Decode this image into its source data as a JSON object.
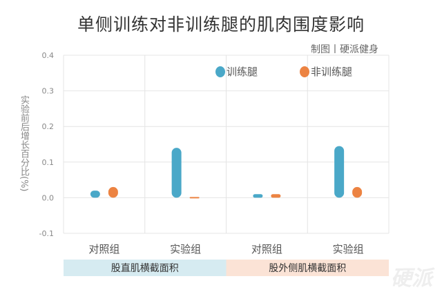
{
  "title": "单侧训练对非训练腿的肌肉围度影响",
  "credit": "制图丨硬派健身",
  "watermark": "硬派",
  "colors": {
    "trained": "#4aa8c8",
    "untrained": "#ec8342",
    "group1_band": "#d6ebf1",
    "group2_band": "#fbe3d6",
    "grid": "#e4e4e4"
  },
  "chart_data": {
    "type": "bar",
    "title": "单侧训练对非训练腿的肌肉围度影响",
    "ylabel": "实验前后增长百分比(%)",
    "ylim": [
      -0.1,
      0.4
    ],
    "yticks": [
      "0.4",
      "0.3",
      "0.2",
      "0.1",
      "0.0",
      "-0.1"
    ],
    "categories": [
      "对照组",
      "实验组",
      "对照组",
      "实验组"
    ],
    "groups": [
      {
        "label": "股直肌横截面积",
        "categories": [
          "对照组",
          "实验组"
        ]
      },
      {
        "label": "股外侧肌横截面积",
        "categories": [
          "对照组",
          "实验组"
        ]
      }
    ],
    "series": [
      {
        "name": "训练腿",
        "values": [
          0.02,
          0.14,
          0.01,
          0.145
        ]
      },
      {
        "name": "非训练腿",
        "values": [
          0.03,
          0.0,
          0.01,
          0.03
        ]
      }
    ],
    "legend_position": "top-right",
    "grid": true
  }
}
